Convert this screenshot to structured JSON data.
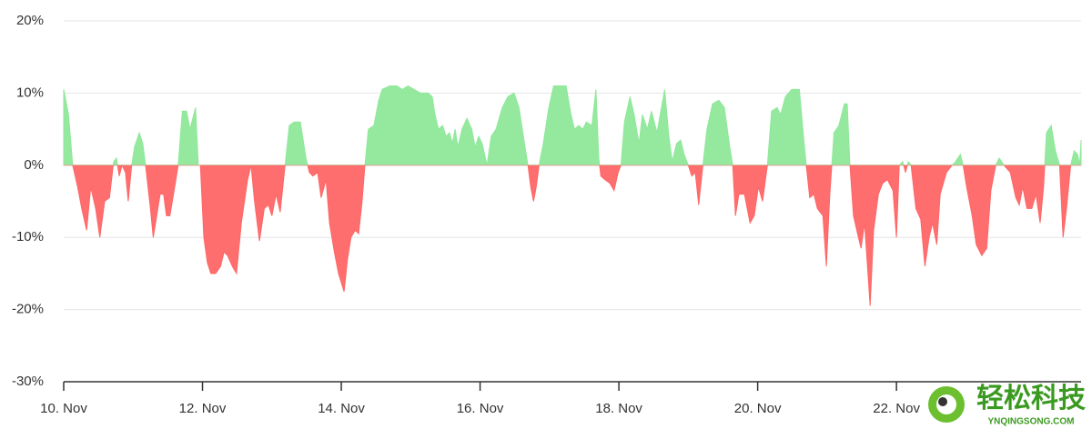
{
  "chart_data": {
    "type": "area",
    "x": [
      10.0,
      10.07,
      10.13,
      10.2,
      10.26,
      10.33,
      10.39,
      10.46,
      10.52,
      10.59,
      10.66,
      10.72,
      10.76,
      10.8,
      10.84,
      10.89,
      10.93,
      10.98,
      11.02,
      11.09,
      11.14,
      11.18,
      11.25,
      11.29,
      11.34,
      11.39,
      11.44,
      11.48,
      11.53,
      11.6,
      11.65,
      11.71,
      11.77,
      11.82,
      11.9,
      11.94,
      11.97,
      12.02,
      12.07,
      12.12,
      12.19,
      12.26,
      12.31,
      12.36,
      12.43,
      12.49,
      12.56,
      12.65,
      12.7,
      12.75,
      12.82,
      12.89,
      12.95,
      13.0,
      13.06,
      13.12,
      13.19,
      13.25,
      13.32,
      13.41,
      13.49,
      13.54,
      13.59,
      13.66,
      13.71,
      13.78,
      13.83,
      13.9,
      13.96,
      14.04,
      14.09,
      14.14,
      14.2,
      14.25,
      14.3,
      14.34,
      14.39,
      14.47,
      14.54,
      14.59,
      14.7,
      14.8,
      14.88,
      14.96,
      15.05,
      15.14,
      15.25,
      15.31,
      15.35,
      15.4,
      15.46,
      15.51,
      15.56,
      15.6,
      15.64,
      15.68,
      15.74,
      15.81,
      15.88,
      15.93,
      15.98,
      16.03,
      16.1,
      16.16,
      16.23,
      16.32,
      16.4,
      16.49,
      16.56,
      16.64,
      16.69,
      16.73,
      16.77,
      16.81,
      16.85,
      16.91,
      16.99,
      17.06,
      17.16,
      17.24,
      17.31,
      17.36,
      17.42,
      17.48,
      17.53,
      17.61,
      17.67,
      17.71,
      17.74,
      17.8,
      17.87,
      17.93,
      17.99,
      18.03,
      18.08,
      18.16,
      18.22,
      18.29,
      18.34,
      18.41,
      18.47,
      18.55,
      18.66,
      18.72,
      18.77,
      18.83,
      18.89,
      18.94,
      19.0,
      19.05,
      19.1,
      19.15,
      19.21,
      19.27,
      19.35,
      19.44,
      19.52,
      19.59,
      19.64,
      19.68,
      19.73,
      19.81,
      19.89,
      19.95,
      20.01,
      20.07,
      20.14,
      20.2,
      20.28,
      20.33,
      20.4,
      20.49,
      20.6,
      20.66,
      20.7,
      20.75,
      20.81,
      20.86,
      20.94,
      20.99,
      21.04,
      21.1,
      21.17,
      21.25,
      21.29,
      21.33,
      21.38,
      21.44,
      21.49,
      21.54,
      21.62,
      21.67,
      21.74,
      21.8,
      21.87,
      21.95,
      22.0,
      22.04,
      22.09,
      22.13,
      22.17,
      22.21,
      22.28,
      22.35,
      22.41,
      22.47,
      22.52,
      22.58,
      22.63,
      22.72,
      22.8,
      22.85,
      22.92,
      22.96,
      23.01,
      23.09,
      23.15,
      23.23,
      23.3,
      23.36,
      23.43,
      23.48,
      23.55,
      23.64,
      23.72,
      23.77,
      23.82,
      23.88,
      23.95,
      24.01,
      24.07,
      24.12,
      24.16,
      24.23,
      24.29,
      24.35,
      24.4,
      24.45,
      24.51,
      24.56,
      24.61,
      24.64,
      24.66
    ],
    "values": [
      10.5,
      7,
      0,
      -3,
      -6,
      -9,
      -3,
      -6,
      -10,
      -5,
      -4.5,
      0.5,
      1,
      -1.5,
      0,
      -1,
      -5,
      0,
      2.5,
      4.5,
      3,
      0,
      -6,
      -10,
      -7,
      -4,
      -4,
      -7,
      -7,
      -3,
      0,
      7.5,
      7.5,
      5,
      8,
      0,
      0,
      -10,
      -13.5,
      -15,
      -15,
      -14,
      -12,
      -12.5,
      -14,
      -15,
      -8,
      -2,
      0,
      -5,
      -10.5,
      -6,
      -5.5,
      -7,
      -4,
      -6.5,
      0,
      5.5,
      6,
      6,
      1,
      -1,
      -1.5,
      -1,
      -4.5,
      -2,
      -8,
      -12,
      -15,
      -17.5,
      -13,
      -10,
      -9,
      -9.5,
      -5,
      0,
      5,
      5.5,
      9,
      10.5,
      11,
      11,
      10.5,
      11,
      10.5,
      10,
      10,
      9.5,
      7,
      5,
      5.5,
      4,
      4.5,
      3,
      5,
      2.5,
      5,
      6.5,
      5,
      2.5,
      4,
      3,
      0,
      4,
      5,
      8,
      9.5,
      10,
      8,
      3,
      0,
      -3,
      -5,
      -3,
      0,
      3,
      8,
      11,
      11,
      11,
      7,
      5,
      5.5,
      5,
      6,
      5.5,
      10.5,
      1,
      -1.5,
      -2,
      -2.5,
      -3.5,
      -1,
      0,
      6,
      9.5,
      7,
      3,
      7,
      5,
      7.5,
      4.5,
      10.5,
      4,
      0.5,
      3,
      3.5,
      1.5,
      0,
      -1.5,
      -1,
      -5.5,
      0,
      5,
      8.5,
      9,
      8,
      3,
      0,
      -7,
      -4,
      -4,
      -8,
      -7,
      -3,
      -5,
      0,
      7.5,
      8,
      7,
      9.5,
      10.5,
      10.5,
      4,
      0,
      -4.5,
      -4,
      -6,
      -7,
      -14,
      -4,
      4.5,
      5.5,
      8.5,
      8.5,
      0,
      -7,
      -9.5,
      -11.5,
      -8,
      -19.5,
      -9,
      -4,
      -2.5,
      -2,
      -3.5,
      -10,
      0,
      0.5,
      -1,
      0.5,
      0,
      -6,
      -7.5,
      -14,
      -10,
      -8,
      -11,
      -4,
      -1,
      0,
      0.5,
      1.5,
      0,
      -3,
      -7,
      -11,
      -12.5,
      -11.5,
      -3.5,
      0,
      1,
      0,
      -1,
      -4.5,
      -5.5,
      -3,
      -6,
      -6,
      -4,
      -8,
      -3,
      4.5,
      5.5,
      2,
      0,
      -10,
      -6,
      0,
      2,
      1.5,
      0,
      3.5
    ],
    "color": "#8fe89a",
    "negative_color": "#ff6666",
    "xlim": [
      10,
      24.66
    ],
    "xticks": [
      {
        "value": 10,
        "label": "10. Nov"
      },
      {
        "value": 12,
        "label": "12. Nov"
      },
      {
        "value": 14,
        "label": "14. Nov"
      },
      {
        "value": 16,
        "label": "16. Nov"
      },
      {
        "value": 18,
        "label": "18. Nov"
      },
      {
        "value": 20,
        "label": "20. Nov"
      },
      {
        "value": 22,
        "label": "22. Nov"
      }
    ],
    "ylim": [
      -30,
      20
    ],
    "yticks": [
      {
        "value": -30,
        "label": "-30%"
      },
      {
        "value": -20,
        "label": "-20%"
      },
      {
        "value": -10,
        "label": "-10%"
      },
      {
        "value": 0,
        "label": "0%"
      },
      {
        "value": 10,
        "label": "10%"
      },
      {
        "value": 20,
        "label": "20%"
      }
    ],
    "grid": true
  },
  "watermark": {
    "title": "轻松科技",
    "url": "YNQINGSONG.COM"
  }
}
